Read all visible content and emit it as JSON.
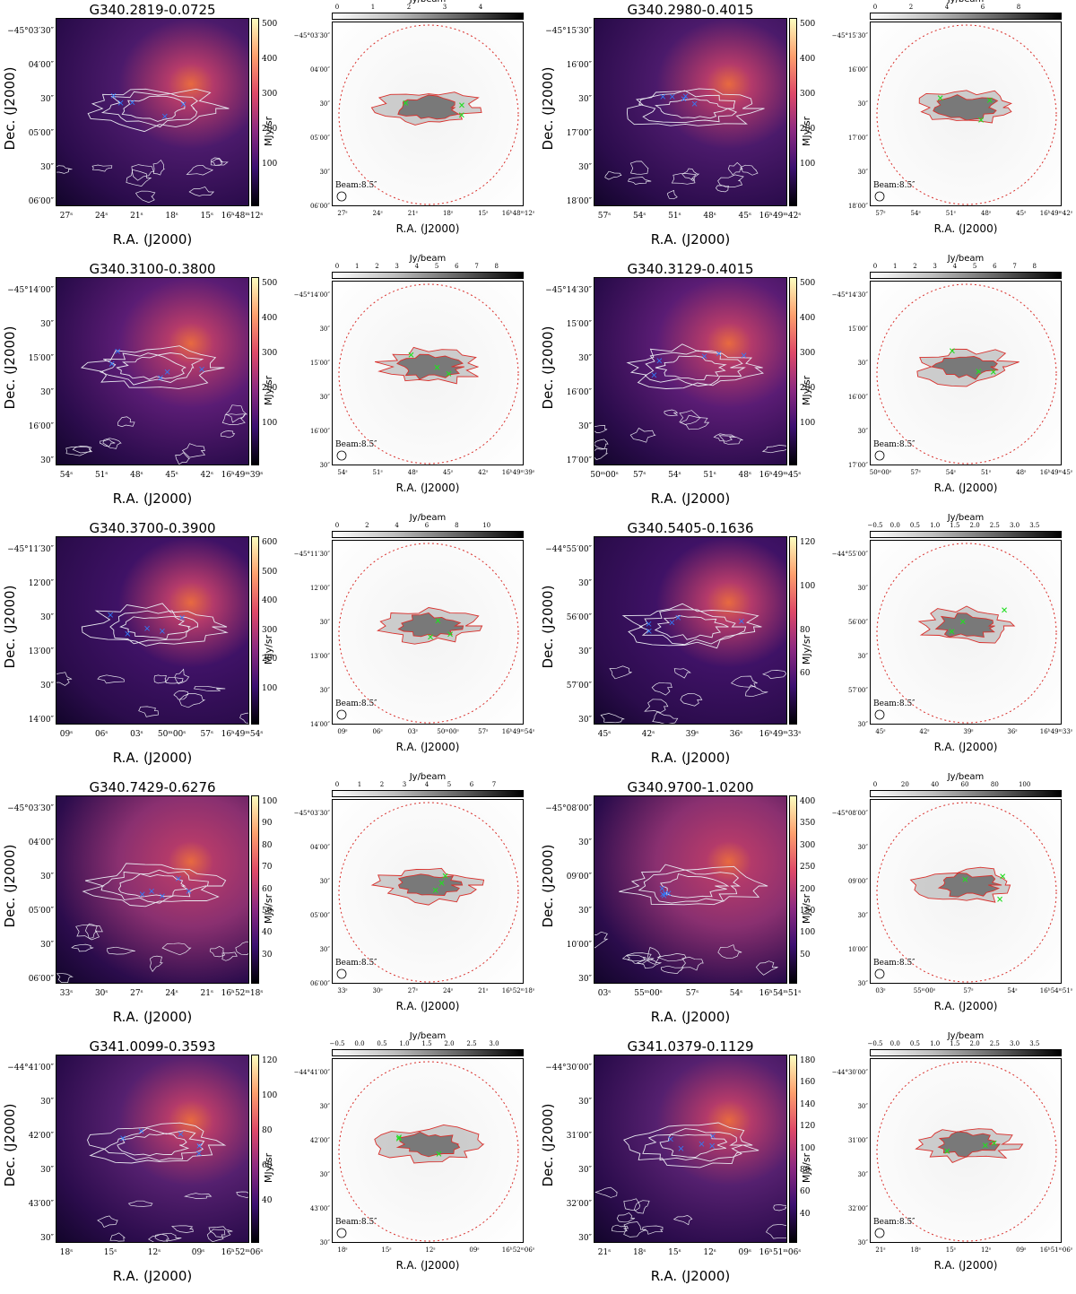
{
  "figure": {
    "rows": [
      {
        "left": {
          "title": "G340.2819-0.0725",
          "ylabel": "Dec. (J2000)",
          "xlabel": "R.A. (J2000)",
          "dec_ticks": [
            "−45°03′30″",
            "04′00″",
            "30″",
            "05′00″",
            "30″",
            "06′00″"
          ],
          "ra_ticks": [
            "27ˢ",
            "24ˢ",
            "21ˢ",
            "18ˢ",
            "15ˢ",
            "16ʰ48ᵐ12ˢ"
          ],
          "cbar_label": "MJy/sr",
          "cbar_ticks": [
            "500",
            "400",
            "300",
            "200",
            "100"
          ],
          "alma": {
            "cbar_label": "Jy/beam",
            "cbar_ticks": [
              "0",
              "1",
              "2",
              "3",
              "4"
            ],
            "dec_ticks": [
              "−45°03′30″",
              "04′00″",
              "30″",
              "05′00″",
              "30″",
              "06′00″"
            ],
            "ra_ticks": [
              "27ˢ",
              "24ˢ",
              "21ˢ",
              "18ˢ",
              "15ˢ",
              "16ʰ48ᵐ12ˢ"
            ],
            "xlabel": "R.A. (J2000)",
            "beam": "Beam:8.5″"
          }
        },
        "right": {
          "title": "G340.2980-0.4015",
          "ylabel": "Dec. (J2000)",
          "xlabel": "R.A. (J2000)",
          "dec_ticks": [
            "−45°15′30″",
            "16′00″",
            "30″",
            "17′00″",
            "30″",
            "18′00″"
          ],
          "ra_ticks": [
            "57ˢ",
            "54ˢ",
            "51ˢ",
            "48ˢ",
            "45ˢ",
            "16ʰ49ᵐ42ˢ"
          ],
          "cbar_label": "MJy/sr",
          "cbar_ticks": [
            "500",
            "400",
            "300",
            "200",
            "100"
          ],
          "alma": {
            "cbar_label": "Jy/beam",
            "cbar_ticks": [
              "0",
              "2",
              "4",
              "6",
              "8"
            ],
            "dec_ticks": [
              "−45°15′30″",
              "16′00″",
              "30″",
              "17′00″",
              "30″",
              "18′00″"
            ],
            "ra_ticks": [
              "57ˢ",
              "54ˢ",
              "51ˢ",
              "48ˢ",
              "45ˢ",
              "16ʰ49ᵐ42ˢ"
            ],
            "xlabel": "R.A. (J2000)",
            "beam": "Beam:8.5″"
          }
        }
      },
      {
        "left": {
          "title": "G340.3100-0.3800",
          "ylabel": "Dec. (J2000)",
          "xlabel": "R.A. (J2000)",
          "dec_ticks": [
            "−45°14′00″",
            "30″",
            "15′00″",
            "30″",
            "16′00″",
            "30″"
          ],
          "ra_ticks": [
            "54ˢ",
            "51ˢ",
            "48ˢ",
            "45ˢ",
            "42ˢ",
            "16ʰ49ᵐ39ˢ"
          ],
          "cbar_label": "MJy/sr",
          "cbar_ticks": [
            "500",
            "400",
            "300",
            "200",
            "100"
          ],
          "alma": {
            "cbar_label": "Jy/beam",
            "cbar_ticks": [
              "0",
              "1",
              "2",
              "3",
              "4",
              "5",
              "6",
              "7",
              "8"
            ],
            "dec_ticks": [
              "−45°14′00″",
              "30″",
              "15′00″",
              "30″",
              "16′00″",
              "30″"
            ],
            "ra_ticks": [
              "54ˢ",
              "51ˢ",
              "48ˢ",
              "45ˢ",
              "42ˢ",
              "16ʰ49ᵐ39ˢ"
            ],
            "xlabel": "R.A. (J2000)",
            "beam": "Beam:8.5″"
          }
        },
        "right": {
          "title": "G340.3129-0.4015",
          "ylabel": "Dec. (J2000)",
          "xlabel": "R.A. (J2000)",
          "dec_ticks": [
            "−45°14′30″",
            "15′00″",
            "30″",
            "16′00″",
            "30″",
            "17′00″"
          ],
          "ra_ticks": [
            "50ᵐ00ˢ",
            "57ˢ",
            "54ˢ",
            "51ˢ",
            "48ˢ",
            "16ʰ49ᵐ45ˢ"
          ],
          "cbar_label": "MJy/sr",
          "cbar_ticks": [
            "500",
            "400",
            "300",
            "200",
            "100"
          ],
          "alma": {
            "cbar_label": "Jy/beam",
            "cbar_ticks": [
              "0",
              "1",
              "2",
              "3",
              "4",
              "5",
              "6",
              "7",
              "8"
            ],
            "dec_ticks": [
              "−45°14′30″",
              "15′00″",
              "30″",
              "16′00″",
              "30″",
              "17′00″"
            ],
            "ra_ticks": [
              "50ᵐ00ˢ",
              "57ˢ",
              "54ˢ",
              "51ˢ",
              "48ˢ",
              "16ʰ49ᵐ45ˢ"
            ],
            "xlabel": "R.A. (J2000)",
            "beam": "Beam:8.5″"
          }
        }
      },
      {
        "left": {
          "title": "G340.3700-0.3900",
          "ylabel": "Dec. (J2000)",
          "xlabel": "R.A. (J2000)",
          "dec_ticks": [
            "−45°11′30″",
            "12′00″",
            "30″",
            "13′00″",
            "30″",
            "14′00″"
          ],
          "ra_ticks": [
            "09ˢ",
            "06ˢ",
            "03ˢ",
            "50ᵐ00ˢ",
            "57ˢ",
            "16ʰ49ᵐ54ˢ"
          ],
          "cbar_label": "MJy/sr",
          "cbar_ticks": [
            "600",
            "500",
            "400",
            "300",
            "200",
            "100"
          ],
          "alma": {
            "cbar_label": "Jy/beam",
            "cbar_ticks": [
              "0",
              "2",
              "4",
              "6",
              "8",
              "10"
            ],
            "dec_ticks": [
              "−45°11′30″",
              "12′00″",
              "30″",
              "13′00″",
              "30″",
              "14′00″"
            ],
            "ra_ticks": [
              "09ˢ",
              "06ˢ",
              "03ˢ",
              "50ᵐ00ˢ",
              "57ˢ",
              "16ʰ49ᵐ54ˢ"
            ],
            "xlabel": "R.A. (J2000)",
            "beam": "Beam:8.5″"
          }
        },
        "right": {
          "title": "G340.5405-0.1636",
          "ylabel": "Dec. (J2000)",
          "xlabel": "R.A. (J2000)",
          "dec_ticks": [
            "−44°55′00″",
            "30″",
            "56′00″",
            "30″",
            "57′00″",
            "30″"
          ],
          "ra_ticks": [
            "45ˢ",
            "42ˢ",
            "39ˢ",
            "36ˢ",
            "16ʰ49ᵐ33ˢ"
          ],
          "cbar_label": "MJy/sr",
          "cbar_ticks": [
            "120",
            "100",
            "80",
            "60"
          ],
          "alma": {
            "cbar_label": "Jy/beam",
            "cbar_ticks": [
              "−0.5",
              "0.0",
              "0.5",
              "1.0",
              "1.5",
              "2.0",
              "2.5",
              "3.0",
              "3.5"
            ],
            "dec_ticks": [
              "−44°55′00″",
              "30″",
              "56′00″",
              "30″",
              "57′00″",
              "30″"
            ],
            "ra_ticks": [
              "45ˢ",
              "42ˢ",
              "39ˢ",
              "36ˢ",
              "16ʰ49ᵐ33ˢ"
            ],
            "xlabel": "R.A. (J2000)",
            "beam": "Beam:8.5″"
          }
        }
      },
      {
        "left": {
          "title": "G340.7429-0.6276",
          "ylabel": "Dec. (J2000)",
          "xlabel": "R.A. (J2000)",
          "dec_ticks": [
            "−45°03′30″",
            "04′00″",
            "30″",
            "05′00″",
            "30″",
            "06′00″"
          ],
          "ra_ticks": [
            "33ˢ",
            "30ˢ",
            "27ˢ",
            "24ˢ",
            "21ˢ",
            "16ʰ52ᵐ18ˢ"
          ],
          "cbar_label": "MJy/sr",
          "cbar_ticks": [
            "100",
            "90",
            "80",
            "70",
            "60",
            "50",
            "40",
            "30"
          ],
          "alma": {
            "cbar_label": "Jy/beam",
            "cbar_ticks": [
              "0",
              "1",
              "2",
              "3",
              "4",
              "5",
              "6",
              "7"
            ],
            "dec_ticks": [
              "−45°03′30″",
              "04′00″",
              "30″",
              "05′00″",
              "30″",
              "06′00″"
            ],
            "ra_ticks": [
              "33ˢ",
              "30ˢ",
              "27ˢ",
              "24ˢ",
              "21ˢ",
              "16ʰ52ᵐ18ˢ"
            ],
            "xlabel": "R.A. (J2000)",
            "beam": "Beam:8.5″"
          }
        },
        "right": {
          "title": "G340.9700-1.0200",
          "ylabel": "Dec. (J2000)",
          "xlabel": "R.A. (J2000)",
          "dec_ticks": [
            "−45°08′00″",
            "30″",
            "09′00″",
            "30″",
            "10′00″",
            "30″"
          ],
          "ra_ticks": [
            "03ˢ",
            "55ᵐ00ˢ",
            "57ˢ",
            "54ˢ",
            "16ʰ54ᵐ51ˢ"
          ],
          "cbar_label": "MJy/sr",
          "cbar_ticks": [
            "400",
            "350",
            "300",
            "250",
            "200",
            "150",
            "100",
            "50"
          ],
          "alma": {
            "cbar_label": "Jy/beam",
            "cbar_ticks": [
              "0",
              "20",
              "40",
              "60",
              "80",
              "100"
            ],
            "dec_ticks": [
              "−45°08′00″",
              "30″",
              "09′00″",
              "30″",
              "10′00″",
              "30″"
            ],
            "ra_ticks": [
              "03ˢ",
              "55ᵐ00ˢ",
              "57ˢ",
              "54ˢ",
              "16ʰ54ᵐ51ˢ"
            ],
            "xlabel": "R.A. (J2000)",
            "beam": "Beam:8.5″"
          }
        }
      },
      {
        "left": {
          "title": "G341.0099-0.3593",
          "ylabel": "Dec. (J2000)",
          "xlabel": "R.A. (J2000)",
          "dec_ticks": [
            "−44°41′00″",
            "30″",
            "42′00″",
            "30″",
            "43′00″",
            "30″"
          ],
          "ra_ticks": [
            "18ˢ",
            "15ˢ",
            "12ˢ",
            "09ˢ",
            "16ʰ52ᵐ06ˢ"
          ],
          "cbar_label": "MJy/sr",
          "cbar_ticks": [
            "120",
            "100",
            "80",
            "60",
            "40"
          ],
          "alma": {
            "cbar_label": "Jy/beam",
            "cbar_ticks": [
              "−0.5",
              "0.0",
              "0.5",
              "1.0",
              "1.5",
              "2.0",
              "2.5",
              "3.0"
            ],
            "dec_ticks": [
              "−44°41′00″",
              "30″",
              "42′00″",
              "30″",
              "43′00″",
              "30″"
            ],
            "ra_ticks": [
              "18ˢ",
              "15ˢ",
              "12ˢ",
              "09ˢ",
              "16ʰ52ᵐ06ˢ"
            ],
            "xlabel": "R.A. (J2000)",
            "beam": "Beam:8.5″"
          }
        },
        "right": {
          "title": "G341.0379-0.1129",
          "ylabel": "Dec. (J2000)",
          "xlabel": "R.A. (J2000)",
          "dec_ticks": [
            "−44°30′00″",
            "30″",
            "31′00″",
            "30″",
            "32′00″",
            "30″"
          ],
          "ra_ticks": [
            "21ˢ",
            "18ˢ",
            "15ˢ",
            "12ˢ",
            "09ˢ",
            "16ʰ51ᵐ06ˢ"
          ],
          "cbar_label": "MJy/sr",
          "cbar_ticks": [
            "180",
            "160",
            "140",
            "120",
            "100",
            "80",
            "60",
            "40"
          ],
          "alma": {
            "cbar_label": "Jy/beam",
            "cbar_ticks": [
              "−0.5",
              "0.0",
              "0.5",
              "1.0",
              "1.5",
              "2.0",
              "2.5",
              "3.0",
              "3.5"
            ],
            "dec_ticks": [
              "−44°30′00″",
              "30″",
              "31′00″",
              "30″",
              "32′00″",
              "30″"
            ],
            "ra_ticks": [
              "21ˢ",
              "18ˢ",
              "15ˢ",
              "12ˢ",
              "09ˢ",
              "16ʰ51ᵐ06ˢ"
            ],
            "xlabel": "R.A. (J2000)",
            "beam": "Beam:8.5″"
          }
        }
      }
    ]
  },
  "colors": {
    "contour_white": "#e8e8f0",
    "contour_red": "#d9302c",
    "marker_blue": "#2f7fff",
    "marker_green": "#22dd22"
  }
}
